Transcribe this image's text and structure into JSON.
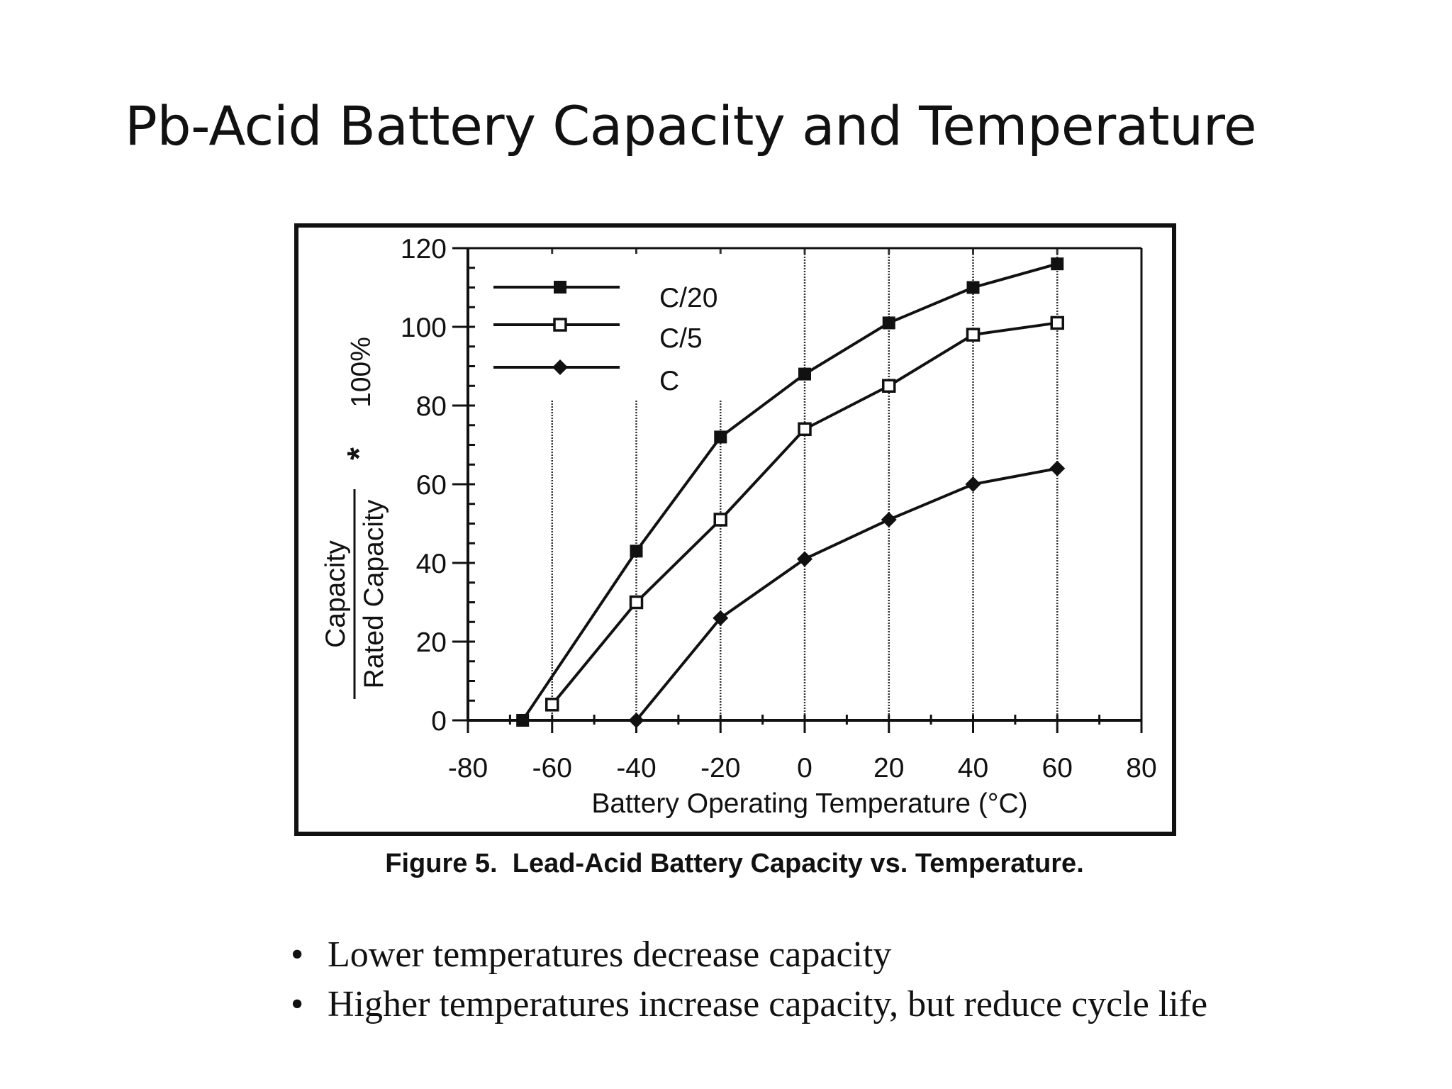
{
  "slide": {
    "title": "Pb-Acid Battery Capacity and Temperature",
    "bullets": [
      "Lower temperatures decrease capacity",
      "Higher temperatures increase capacity, but reduce cycle life"
    ]
  },
  "chart_data": {
    "type": "line",
    "caption": "Figure 5.  Lead-Acid Battery Capacity vs. Temperature.",
    "xlabel": "Battery Operating Temperature (°C)",
    "ylabel": {
      "numerator": "Capacity",
      "denominator": "Rated Capacity",
      "operator": "*",
      "multiplier": "100%"
    },
    "xlim": [
      -80,
      80
    ],
    "ylim": [
      0,
      120
    ],
    "xticks": [
      "-80",
      "-60",
      "-40",
      "-20",
      "0",
      "20",
      "40",
      "60",
      "80"
    ],
    "yticks": [
      "0",
      "20",
      "40",
      "60",
      "80",
      "100",
      "120"
    ],
    "vertical_gridlines_at": [
      -60,
      -40,
      -20,
      0,
      20,
      40,
      60
    ],
    "legend_position": "top-left",
    "series": [
      {
        "name": "C/20",
        "marker": "filled-square",
        "x": [
          -67,
          -40,
          -20,
          0,
          20,
          40,
          60
        ],
        "y": [
          0,
          43,
          72,
          88,
          101,
          110,
          116
        ]
      },
      {
        "name": "C/5",
        "marker": "open-square",
        "x": [
          -60,
          -40,
          -20,
          0,
          20,
          40,
          60
        ],
        "y": [
          4,
          30,
          51,
          74,
          85,
          98,
          101
        ]
      },
      {
        "name": "C",
        "marker": "filled-diamond",
        "x": [
          -40,
          -20,
          0,
          20,
          40,
          60
        ],
        "y": [
          0,
          26,
          41,
          51,
          60,
          64
        ]
      }
    ]
  }
}
